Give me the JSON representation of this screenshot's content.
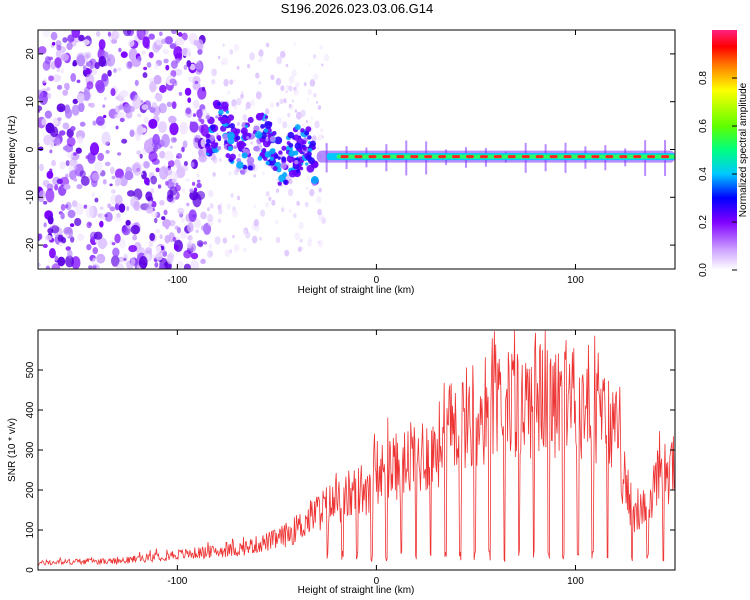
{
  "title": "S196.2026.023.03.06.G14",
  "chart_data": [
    {
      "type": "heatmap",
      "title": "S196.2026.023.03.06.G14",
      "xlabel": "Height of straight line (km)",
      "ylabel": "Frequency (Hz)",
      "xlim": [
        -170,
        150
      ],
      "ylim": [
        -25,
        25
      ],
      "xticks": [
        -100,
        0,
        100
      ],
      "yticks": [
        -20,
        -10,
        0,
        10,
        20
      ],
      "colorbar": {
        "label": "Normalized spectral amplitude",
        "range": [
          0.0,
          1.0
        ],
        "ticks": [
          "0.0",
          "0.2",
          "0.4",
          "0.6",
          "0.8"
        ],
        "colors": [
          "#ffffff",
          "#c8a0ff",
          "#8000ff",
          "#0000ff",
          "#00c0ff",
          "#00ff80",
          "#80ff00",
          "#ffff00",
          "#ff8000",
          "#ff0000",
          "#ff2080"
        ]
      },
      "description_series": {
        "noise_region_x": [
          -170,
          -85
        ],
        "transition_region_x": [
          -85,
          -30
        ],
        "stable_tone_x": [
          -30,
          150
        ],
        "stable_tone_freq": -1.5
      }
    },
    {
      "type": "line",
      "xlabel": "Height of straight line (km)",
      "ylabel": "SNR (10 * v/v)",
      "xlim": [
        -170,
        150
      ],
      "ylim": [
        0,
        600
      ],
      "xticks": [
        -100,
        0,
        100
      ],
      "yticks": [
        0,
        100,
        200,
        300,
        400,
        500
      ],
      "color": "#ee3333",
      "x": [
        -170,
        -150,
        -130,
        -110,
        -90,
        -70,
        -50,
        -40,
        -30,
        -20,
        -10,
        0,
        10,
        20,
        30,
        40,
        50,
        60,
        70,
        80,
        90,
        100,
        110,
        120,
        125,
        130,
        140,
        150
      ],
      "y": [
        20,
        25,
        25,
        40,
        50,
        60,
        90,
        120,
        170,
        200,
        230,
        270,
        300,
        330,
        360,
        430,
        460,
        480,
        490,
        500,
        505,
        500,
        460,
        420,
        250,
        150,
        240,
        320
      ]
    }
  ]
}
